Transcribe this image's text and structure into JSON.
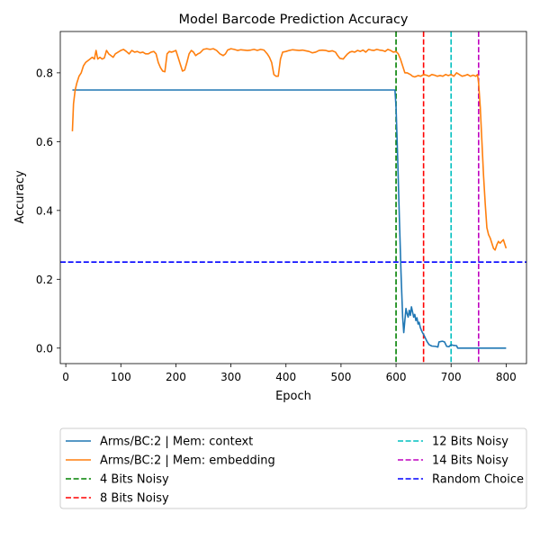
{
  "chart_data": {
    "type": "line",
    "title": "Model Barcode Prediction Accuracy",
    "xlabel": "Epoch",
    "ylabel": "Accuracy",
    "xlim": [
      -10,
      837
    ],
    "ylim": [
      -0.045,
      0.92
    ],
    "xticks": [
      0,
      100,
      200,
      300,
      400,
      500,
      600,
      700,
      800
    ],
    "yticks": [
      0.0,
      0.2,
      0.4,
      0.6,
      0.8
    ],
    "xtick_labels": [
      "0",
      "100",
      "200",
      "300",
      "400",
      "500",
      "600",
      "700",
      "800"
    ],
    "ytick_labels": [
      "0.0",
      "0.2",
      "0.4",
      "0.6",
      "0.8"
    ],
    "grid": false,
    "legend_placement": "below plot, two columns",
    "series": [
      {
        "name": "Arms/BC:2 | Mem: context",
        "color": "#1f77b4",
        "points": [
          [
            12,
            0.75
          ],
          [
            100,
            0.75
          ],
          [
            200,
            0.75
          ],
          [
            300,
            0.75
          ],
          [
            400,
            0.75
          ],
          [
            500,
            0.75
          ],
          [
            598,
            0.75
          ],
          [
            600,
            0.7
          ],
          [
            603,
            0.55
          ],
          [
            606,
            0.38
          ],
          [
            609,
            0.22
          ],
          [
            612,
            0.09
          ],
          [
            614,
            0.045
          ],
          [
            616,
            0.08
          ],
          [
            618,
            0.115
          ],
          [
            620,
            0.1
          ],
          [
            622,
            0.09
          ],
          [
            624,
            0.11
          ],
          [
            626,
            0.095
          ],
          [
            628,
            0.12
          ],
          [
            630,
            0.105
          ],
          [
            632,
            0.09
          ],
          [
            634,
            0.098
          ],
          [
            636,
            0.08
          ],
          [
            638,
            0.088
          ],
          [
            640,
            0.07
          ],
          [
            642,
            0.075
          ],
          [
            644,
            0.06
          ],
          [
            646,
            0.052
          ],
          [
            648,
            0.045
          ],
          [
            650,
            0.04
          ],
          [
            653,
            0.03
          ],
          [
            656,
            0.02
          ],
          [
            660,
            0.01
          ],
          [
            665,
            0.006
          ],
          [
            672,
            0.005
          ],
          [
            676,
            0.003
          ],
          [
            678,
            0.018
          ],
          [
            684,
            0.02
          ],
          [
            688,
            0.018
          ],
          [
            692,
            0.005
          ],
          [
            696,
            0.004
          ],
          [
            700,
            0.01
          ],
          [
            704,
            0.008
          ],
          [
            710,
            0.007
          ],
          [
            712,
            0.0
          ],
          [
            750,
            0.0
          ],
          [
            800,
            0.0
          ]
        ]
      },
      {
        "name": "Arms/BC:2 | Mem: embedding",
        "color": "#ff7f0e",
        "points": [
          [
            12,
            0.63
          ],
          [
            14,
            0.71
          ],
          [
            17,
            0.75
          ],
          [
            20,
            0.77
          ],
          [
            24,
            0.79
          ],
          [
            28,
            0.8
          ],
          [
            32,
            0.82
          ],
          [
            36,
            0.83
          ],
          [
            40,
            0.835
          ],
          [
            44,
            0.84
          ],
          [
            48,
            0.845
          ],
          [
            52,
            0.84
          ],
          [
            55,
            0.865
          ],
          [
            58,
            0.84
          ],
          [
            62,
            0.845
          ],
          [
            66,
            0.84
          ],
          [
            70,
            0.843
          ],
          [
            74,
            0.865
          ],
          [
            78,
            0.855
          ],
          [
            82,
            0.85
          ],
          [
            86,
            0.845
          ],
          [
            90,
            0.855
          ],
          [
            95,
            0.86
          ],
          [
            100,
            0.865
          ],
          [
            105,
            0.868
          ],
          [
            110,
            0.862
          ],
          [
            115,
            0.855
          ],
          [
            120,
            0.865
          ],
          [
            125,
            0.86
          ],
          [
            130,
            0.862
          ],
          [
            135,
            0.858
          ],
          [
            140,
            0.86
          ],
          [
            145,
            0.855
          ],
          [
            150,
            0.855
          ],
          [
            155,
            0.86
          ],
          [
            160,
            0.862
          ],
          [
            164,
            0.855
          ],
          [
            168,
            0.83
          ],
          [
            172,
            0.815
          ],
          [
            176,
            0.805
          ],
          [
            180,
            0.803
          ],
          [
            184,
            0.855
          ],
          [
            188,
            0.862
          ],
          [
            192,
            0.86
          ],
          [
            196,
            0.862
          ],
          [
            200,
            0.865
          ],
          [
            204,
            0.845
          ],
          [
            208,
            0.825
          ],
          [
            212,
            0.805
          ],
          [
            216,
            0.808
          ],
          [
            220,
            0.83
          ],
          [
            224,
            0.855
          ],
          [
            228,
            0.865
          ],
          [
            232,
            0.86
          ],
          [
            236,
            0.85
          ],
          [
            240,
            0.855
          ],
          [
            244,
            0.858
          ],
          [
            250,
            0.868
          ],
          [
            256,
            0.87
          ],
          [
            262,
            0.868
          ],
          [
            268,
            0.87
          ],
          [
            274,
            0.865
          ],
          [
            280,
            0.855
          ],
          [
            286,
            0.85
          ],
          [
            290,
            0.855
          ],
          [
            294,
            0.866
          ],
          [
            300,
            0.87
          ],
          [
            306,
            0.868
          ],
          [
            312,
            0.865
          ],
          [
            318,
            0.867
          ],
          [
            324,
            0.866
          ],
          [
            330,
            0.865
          ],
          [
            336,
            0.866
          ],
          [
            342,
            0.868
          ],
          [
            348,
            0.865
          ],
          [
            354,
            0.868
          ],
          [
            360,
            0.866
          ],
          [
            366,
            0.855
          ],
          [
            370,
            0.845
          ],
          [
            374,
            0.83
          ],
          [
            378,
            0.795
          ],
          [
            382,
            0.79
          ],
          [
            386,
            0.79
          ],
          [
            390,
            0.84
          ],
          [
            394,
            0.86
          ],
          [
            400,
            0.862
          ],
          [
            406,
            0.865
          ],
          [
            412,
            0.867
          ],
          [
            418,
            0.866
          ],
          [
            424,
            0.865
          ],
          [
            430,
            0.866
          ],
          [
            436,
            0.864
          ],
          [
            442,
            0.862
          ],
          [
            448,
            0.858
          ],
          [
            454,
            0.86
          ],
          [
            460,
            0.865
          ],
          [
            466,
            0.866
          ],
          [
            472,
            0.865
          ],
          [
            478,
            0.862
          ],
          [
            484,
            0.864
          ],
          [
            490,
            0.86
          ],
          [
            494,
            0.85
          ],
          [
            498,
            0.842
          ],
          [
            504,
            0.84
          ],
          [
            508,
            0.848
          ],
          [
            512,
            0.855
          ],
          [
            516,
            0.86
          ],
          [
            520,
            0.862
          ],
          [
            525,
            0.86
          ],
          [
            530,
            0.865
          ],
          [
            535,
            0.862
          ],
          [
            540,
            0.866
          ],
          [
            545,
            0.86
          ],
          [
            550,
            0.868
          ],
          [
            555,
            0.866
          ],
          [
            560,
            0.865
          ],
          [
            565,
            0.868
          ],
          [
            570,
            0.866
          ],
          [
            575,
            0.865
          ],
          [
            580,
            0.862
          ],
          [
            585,
            0.868
          ],
          [
            590,
            0.865
          ],
          [
            595,
            0.86
          ],
          [
            600,
            0.862
          ],
          [
            604,
            0.855
          ],
          [
            608,
            0.84
          ],
          [
            612,
            0.82
          ],
          [
            616,
            0.8
          ],
          [
            620,
            0.8
          ],
          [
            626,
            0.795
          ],
          [
            630,
            0.79
          ],
          [
            634,
            0.788
          ],
          [
            640,
            0.792
          ],
          [
            645,
            0.79
          ],
          [
            650,
            0.795
          ],
          [
            655,
            0.793
          ],
          [
            660,
            0.79
          ],
          [
            665,
            0.795
          ],
          [
            670,
            0.793
          ],
          [
            675,
            0.79
          ],
          [
            680,
            0.792
          ],
          [
            685,
            0.79
          ],
          [
            690,
            0.795
          ],
          [
            695,
            0.792
          ],
          [
            700,
            0.795
          ],
          [
            705,
            0.79
          ],
          [
            710,
            0.8
          ],
          [
            715,
            0.795
          ],
          [
            720,
            0.79
          ],
          [
            725,
            0.792
          ],
          [
            730,
            0.795
          ],
          [
            735,
            0.79
          ],
          [
            740,
            0.793
          ],
          [
            745,
            0.79
          ],
          [
            748,
            0.795
          ],
          [
            750,
            0.77
          ],
          [
            753,
            0.7
          ],
          [
            756,
            0.6
          ],
          [
            759,
            0.5
          ],
          [
            762,
            0.42
          ],
          [
            765,
            0.35
          ],
          [
            768,
            0.33
          ],
          [
            771,
            0.32
          ],
          [
            774,
            0.305
          ],
          [
            777,
            0.29
          ],
          [
            780,
            0.285
          ],
          [
            783,
            0.3
          ],
          [
            786,
            0.31
          ],
          [
            789,
            0.305
          ],
          [
            792,
            0.31
          ],
          [
            795,
            0.315
          ],
          [
            798,
            0.3
          ],
          [
            800,
            0.29
          ]
        ]
      }
    ],
    "reference_lines": [
      {
        "name": "4 Bits Noisy",
        "orientation": "vertical",
        "value": 600,
        "color": "#008000"
      },
      {
        "name": "8 Bits Noisy",
        "orientation": "vertical",
        "value": 650,
        "color": "#ff0000"
      },
      {
        "name": "12 Bits Noisy",
        "orientation": "vertical",
        "value": 700,
        "color": "#00bfbf"
      },
      {
        "name": "14 Bits Noisy",
        "orientation": "vertical",
        "value": 750,
        "color": "#bf00bf"
      },
      {
        "name": "Random Choice",
        "orientation": "horizontal",
        "value": 0.25,
        "color": "#0000ff"
      }
    ]
  }
}
